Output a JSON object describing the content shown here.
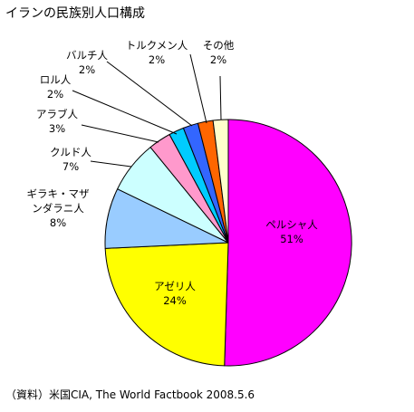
{
  "chart_data": {
    "type": "pie",
    "title": "イランの民族別人口構成",
    "source": "（資料）米国CIA, The World Factbook 2008.5.6",
    "unit": "%",
    "start_angle_deg": 0,
    "direction": "clockwise",
    "slices": [
      {
        "label": [
          "ペルシャ人"
        ],
        "value": 51,
        "value_label": "51%",
        "color": "#ff00ff"
      },
      {
        "label": [
          "アゼリ人"
        ],
        "value": 24,
        "value_label": "24%",
        "color": "#ffff00"
      },
      {
        "label": [
          "ギラキ・マザ",
          "ンダラニ人"
        ],
        "value": 8,
        "value_label": "8%",
        "color": "#99ccff"
      },
      {
        "label": [
          "クルド人"
        ],
        "value": 7,
        "value_label": "7%",
        "color": "#ccffff"
      },
      {
        "label": [
          "アラブ人"
        ],
        "value": 3,
        "value_label": "3%",
        "color": "#ff99cc"
      },
      {
        "label": [
          "ロル人"
        ],
        "value": 2,
        "value_label": "2%",
        "color": "#00ccff"
      },
      {
        "label": [
          "バルチ人"
        ],
        "value": 2,
        "value_label": "2%",
        "color": "#3366ff"
      },
      {
        "label": [
          "トルクメン人"
        ],
        "value": 2,
        "value_label": "2%",
        "color": "#ff6600"
      },
      {
        "label": [
          "その他"
        ],
        "value": 2,
        "value_label": "2%",
        "color": "#ffffcc"
      }
    ]
  }
}
